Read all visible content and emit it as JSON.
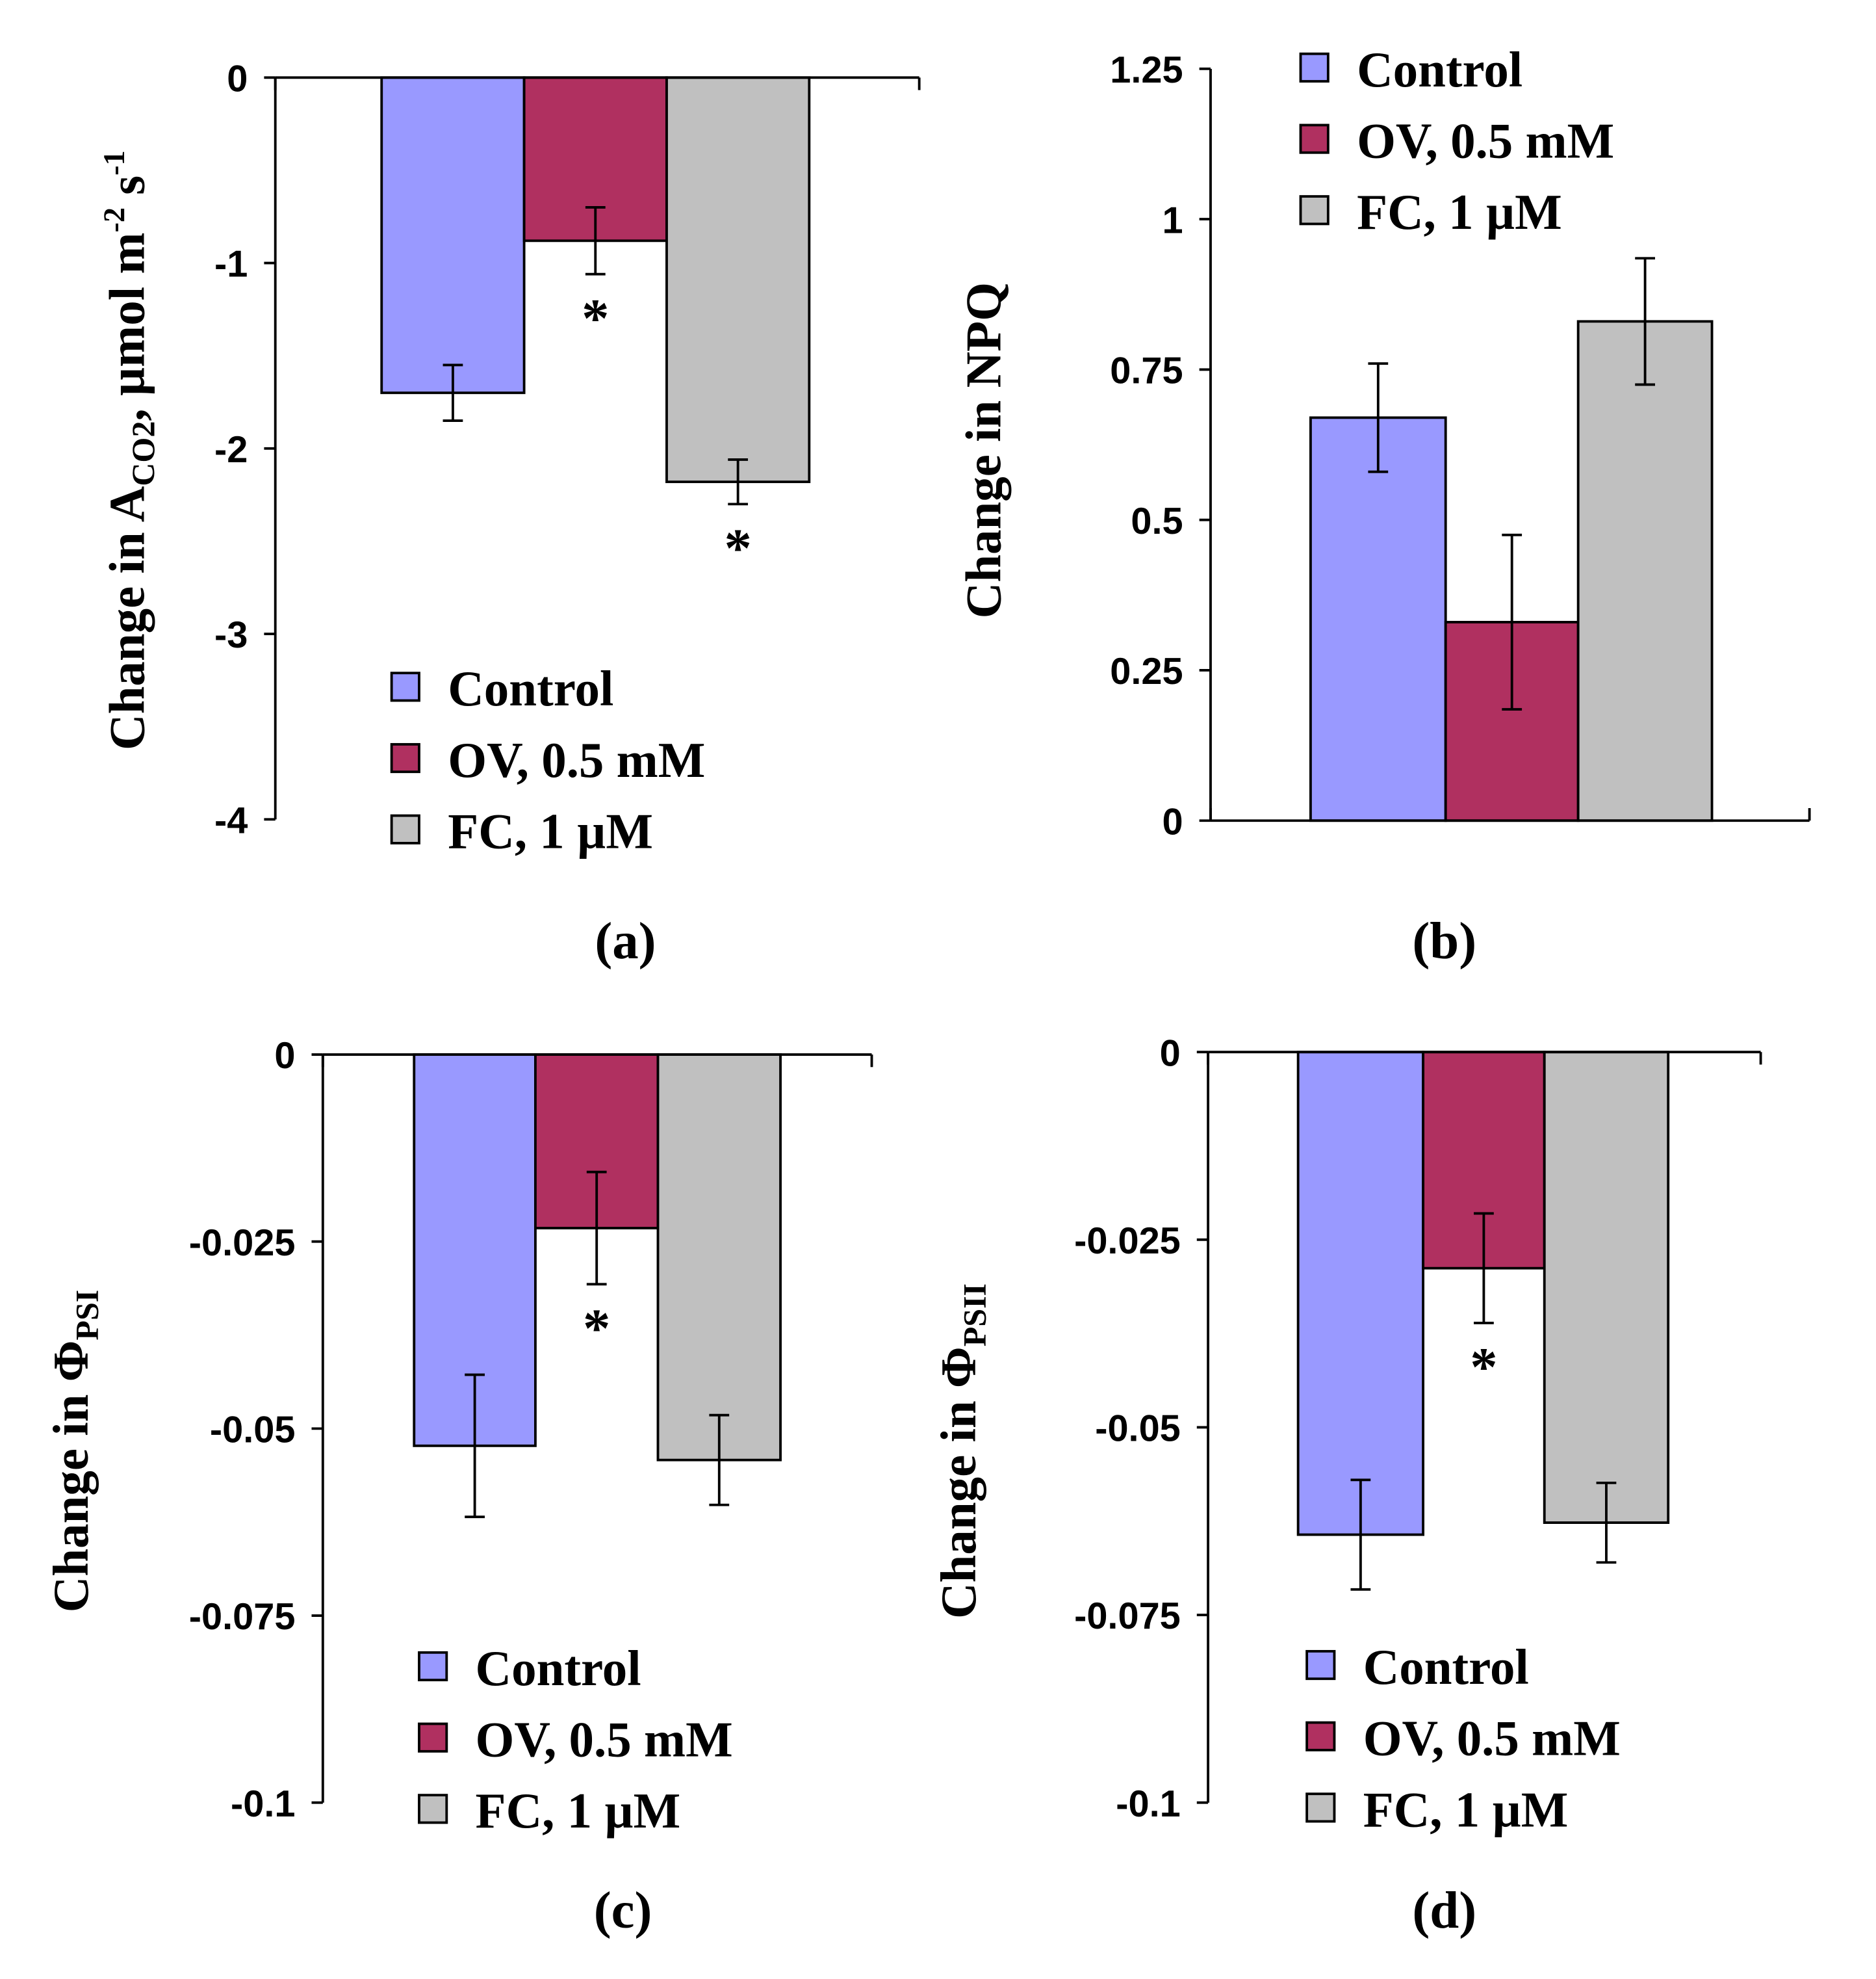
{
  "series_colors": {
    "Control": "#9999ff",
    "OV, 0.5 mM": "#b03060",
    "FC, 1 µM": "#c0c0c0"
  },
  "chart_data": [
    {
      "type": "bar",
      "panel_label": "(a)",
      "ylabel_parts": [
        {
          "t": "Change in A"
        },
        {
          "t": "CO2",
          "sub": true
        },
        {
          "t": ", µmol m"
        },
        {
          "t": "-2",
          "sup": true
        },
        {
          "t": " s"
        },
        {
          "t": "-1",
          "sup": true
        }
      ],
      "ylim": [
        -4,
        0
      ],
      "yticks": [
        0,
        -1,
        -2,
        -3,
        -4
      ],
      "ytick_labels": [
        "0",
        "-1",
        "-2",
        "-3",
        "-4"
      ],
      "legend": [
        "Control",
        "OV, 0.5 mM",
        "FC, 1 µM"
      ],
      "legend_placement": "bottom",
      "values": [
        -1.7,
        -0.88,
        -2.18
      ],
      "errors": [
        0.15,
        0.18,
        0.12
      ],
      "significance": [
        "",
        "*",
        "*"
      ]
    },
    {
      "type": "bar",
      "panel_label": "(b)",
      "ylabel_parts": [
        {
          "t": "Change in NPQ"
        }
      ],
      "ylim": [
        0,
        1.25
      ],
      "yticks": [
        1.25,
        1,
        0.75,
        0.5,
        0.25,
        0
      ],
      "ytick_labels": [
        "1.25",
        "1",
        "0.75",
        "0.5",
        "0.25",
        "0"
      ],
      "legend": [
        "Control",
        "OV, 0.5 mM",
        "FC, 1 µM"
      ],
      "legend_placement": "top",
      "values": [
        0.67,
        0.33,
        0.83
      ],
      "errors": [
        0.09,
        0.145,
        0.105
      ],
      "significance": [
        "",
        "",
        ""
      ]
    },
    {
      "type": "bar",
      "panel_label": "(c)",
      "ylabel_parts": [
        {
          "t": "Change in Φ"
        },
        {
          "t": "PSI",
          "sub": true
        }
      ],
      "ylim": [
        -0.1,
        0
      ],
      "yticks": [
        0,
        -0.025,
        -0.05,
        -0.075,
        -0.1
      ],
      "ytick_labels": [
        "0",
        "-0.025",
        "-0.05",
        "-0.075",
        "-0.1"
      ],
      "legend": [
        "Control",
        "OV, 0.5 mM",
        "FC, 1 µM"
      ],
      "legend_placement": "bottom",
      "values": [
        -0.0523,
        -0.0232,
        -0.0542
      ],
      "errors": [
        0.0095,
        0.0075,
        0.006
      ],
      "significance": [
        "",
        "*",
        ""
      ]
    },
    {
      "type": "bar",
      "panel_label": "(d)",
      "ylabel_parts": [
        {
          "t": "Change in Φ"
        },
        {
          "t": "PSII",
          "sub": true
        }
      ],
      "ylim": [
        -0.1,
        0
      ],
      "yticks": [
        0,
        -0.025,
        -0.05,
        -0.075,
        -0.1
      ],
      "ytick_labels": [
        "0",
        "-0.025",
        "-0.05",
        "-0.075",
        "-0.1"
      ],
      "legend": [
        "Control",
        "OV, 0.5 mM",
        "FC, 1 µM"
      ],
      "legend_placement": "bottom",
      "values": [
        -0.0643,
        -0.0288,
        -0.0627
      ],
      "errors": [
        0.0073,
        0.0073,
        0.0053
      ],
      "significance": [
        "",
        "*",
        ""
      ]
    }
  ]
}
